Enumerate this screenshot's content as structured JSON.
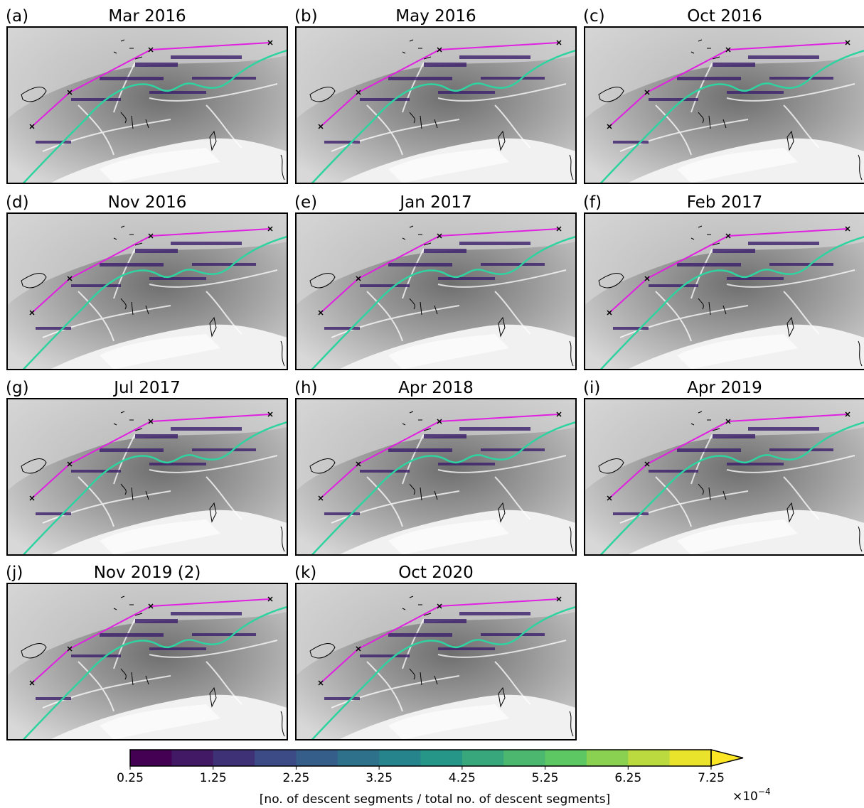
{
  "panels": [
    {
      "label": "(a)",
      "title": "Mar 2016"
    },
    {
      "label": "(b)",
      "title": "May 2016"
    },
    {
      "label": "(c)",
      "title": "Oct 2016"
    },
    {
      "label": "(d)",
      "title": "Nov 2016"
    },
    {
      "label": "(e)",
      "title": "Jan 2017"
    },
    {
      "label": "(f)",
      "title": "Feb 2017"
    },
    {
      "label": "(g)",
      "title": "Jul 2017"
    },
    {
      "label": "(h)",
      "title": "Apr 2018"
    },
    {
      "label": "(i)",
      "title": "Apr 2019"
    },
    {
      "label": "(j)",
      "title": "Nov 2019 (2)"
    },
    {
      "label": "(k)",
      "title": "Oct 2020"
    }
  ],
  "colorbar": {
    "lim": [
      0.25,
      7.25
    ],
    "ticks": [
      0.25,
      1.25,
      2.25,
      3.25,
      4.25,
      5.25,
      6.25,
      7.25
    ],
    "label": "[no. of descent segments / total no. of descent segments]",
    "offset_base": "×10",
    "offset_exponent": "−4",
    "colormap": "viridis"
  }
}
